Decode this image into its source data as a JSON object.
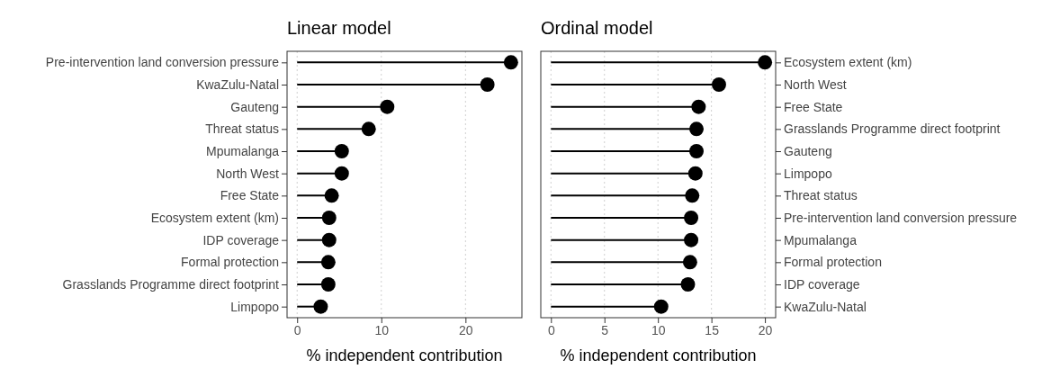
{
  "chart_data": [
    {
      "type": "lollipop",
      "title": "Linear model",
      "xlabel": "% independent contribution",
      "orientation": "horizontal",
      "color": "#000000",
      "marker": "circle",
      "grid": "x",
      "categories": [
        "Pre-intervention land conversion pressure",
        "KwaZulu-Natal",
        "Gauteng",
        "Threat status",
        "Mpumalanga",
        "North West",
        "Free State",
        "Ecosystem extent (km)",
        "IDP coverage",
        "Formal protection",
        "Grasslands Programme direct footprint",
        "Limpopo"
      ],
      "values": [
        25.4,
        22.6,
        10.7,
        8.5,
        5.3,
        5.3,
        4.1,
        3.8,
        3.8,
        3.7,
        3.7,
        2.8
      ],
      "xlim": [
        -1.2,
        26.7
      ],
      "xticks": [
        0,
        10,
        20
      ]
    },
    {
      "type": "lollipop",
      "title": "Ordinal model",
      "xlabel": "% independent contribution",
      "orientation": "horizontal",
      "color": "#000000",
      "marker": "circle",
      "grid": "x",
      "categories": [
        "Ecosystem extent (km)",
        "North West",
        "Free State",
        "Grasslands Programme direct footprint",
        "Gauteng",
        "Limpopo",
        "Threat status",
        "Pre-intervention land conversion pressure",
        "Mpumalanga",
        "Formal protection",
        "IDP coverage",
        "KwaZulu-Natal"
      ],
      "values": [
        20.0,
        15.7,
        13.8,
        13.6,
        13.6,
        13.5,
        13.2,
        13.1,
        13.1,
        13.0,
        12.8,
        10.3
      ],
      "xlim": [
        -0.95,
        21.0
      ],
      "xticks": [
        0,
        5,
        10,
        15,
        20
      ]
    }
  ]
}
